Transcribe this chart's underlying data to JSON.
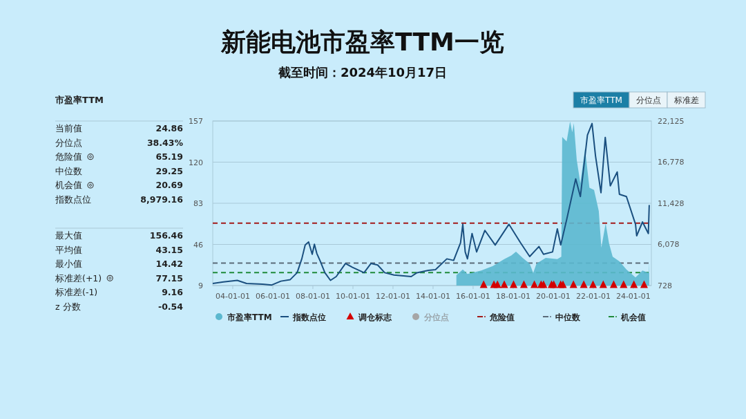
{
  "chart_data": [
    {
      "type": "other",
      "title": "市盈率TTM",
      "categories": [
        "当前值",
        "分位点",
        "危险值",
        "中位数",
        "机会值",
        "指数点位",
        "最大值",
        "平均值",
        "最小值",
        "标准差(+1)",
        "标准差(-1)",
        "z 分数"
      ],
      "value_labels": [
        "24.86",
        "38.43%",
        "65.19",
        "29.25",
        "20.69",
        "8,979.16",
        "156.46",
        "43.15",
        "14.42",
        "77.15",
        "9.16",
        "-0.54"
      ]
    },
    {
      "type": "area",
      "title": "新能电池市盈率TTM一览",
      "subtitle": "截至时间：2024年10月17日",
      "series": [
        {
          "name": "市盈率TTM",
          "type": "area",
          "color": "#5bb8cf",
          "x": [
            "2015-03-02",
            "2015-06-27",
            "2015-09-20",
            "2016-05-28",
            "2016-12-27",
            "2017-07-22",
            "2017-11-28",
            "2018-02-21",
            "2018-06-23",
            "2018-10-29",
            "2019-01-01",
            "2019-03-02",
            "2019-08-17",
            "2020-03-16",
            "2020-05-28",
            "2020-06-13",
            "2020-09-02",
            "2020-11-03",
            "2020-12-13",
            "2021-01-11",
            "2021-03-05",
            "2021-05-10",
            "2021-08-03",
            "2021-10-22",
            "2022-01-15",
            "2022-04-11",
            "2022-05-28",
            "2022-08-14",
            "2022-10-15",
            "2022-12-20",
            "2023-04-22",
            "2023-08-28",
            "2024-02-10",
            "2024-06-16",
            "2024-10-10",
            "2024-10-17"
          ],
          "values": [
            18.3,
            23.5,
            19.4,
            22.5,
            26.6,
            32.8,
            36,
            39.5,
            33.9,
            28.7,
            20.4,
            28.7,
            33.9,
            32.8,
            35,
            142.7,
            138.6,
            156.5,
            146.9,
            155,
            122,
            101,
            132,
            97,
            95,
            76,
            43,
            65,
            47,
            35,
            30.8,
            23.5,
            16.3,
            22.5,
            20.4,
            30.8
          ]
        },
        {
          "name": "指数点位",
          "type": "line",
          "axis": "y2",
          "color": "#1a4f7f",
          "x": [
            "2003-01-01",
            "2003-07-15",
            "2004-03-23",
            "2004-09-09",
            "2005-06-27",
            "2005-12-13",
            "2006-05-28",
            "2006-11-14",
            "2007-03-20",
            "2007-06-13",
            "2007-08-14",
            "2007-10-15",
            "2007-12-20",
            "2008-01-29",
            "2008-03-13",
            "2008-05-14",
            "2008-08-07",
            "2008-11-17",
            "2009-03-02",
            "2009-08-17",
            "2009-12-23",
            "2010-07-22",
            "2010-11-25",
            "2011-03-27",
            "2011-08-03",
            "2012-01-19",
            "2012-11-28",
            "2013-03-13",
            "2013-10-08",
            "2014-02-14",
            "2014-09-09",
            "2015-01-11",
            "2015-05-17",
            "2015-06-27",
            "2015-08-10",
            "2015-09-20",
            "2015-12-13",
            "2016-03-05",
            "2016-08-03",
            "2017-02-07",
            "2017-10-15",
            "2018-05-14",
            "2018-10-29",
            "2019-04-15",
            "2019-07-08",
            "2019-12-20",
            "2020-03-16",
            "2020-05-17",
            "2020-09-02",
            "2021-02-14",
            "2021-05-10",
            "2021-09-16",
            "2021-12-09",
            "2022-02-10",
            "2022-05-21",
            "2022-08-07",
            "2022-11-07",
            "2023-03-13",
            "2023-04-22",
            "2023-08-28",
            "2024-02-10",
            "2024-03-02",
            "2024-06-16",
            "2024-10-01",
            "2024-10-17"
          ],
          "values": [
            1000,
            1200,
            1400,
            1000,
            900,
            800,
            1300,
            1500,
            2400,
            4200,
            6000,
            6400,
            4800,
            6100,
            4900,
            3900,
            2400,
            1400,
            1900,
            3600,
            3100,
            2400,
            3600,
            3400,
            2400,
            2100,
            1900,
            2400,
            2700,
            2800,
            4200,
            4000,
            6300,
            8700,
            5100,
            4200,
            7500,
            5100,
            7900,
            6000,
            8700,
            6300,
            4500,
            5800,
            4800,
            5100,
            8100,
            6000,
            9300,
            14600,
            12300,
            20300,
            21800,
            17600,
            12800,
            20000,
            13700,
            15500,
            12600,
            12300,
            8700,
            7200,
            9000,
            7500,
            11200
          ]
        },
        {
          "name": "调仓标志",
          "type": "scatter",
          "marker": "triangle",
          "color": "#d40000",
          "x": [
            "2016-07-11",
            "2017-01-15",
            "2017-03-20",
            "2017-07-22",
            "2018-01-08",
            "2018-07-15",
            "2019-01-22",
            "2019-05-25",
            "2019-07-08",
            "2019-12-02",
            "2020-01-11",
            "2020-05-17",
            "2020-06-27",
            "2021-01-04",
            "2021-07-11",
            "2021-12-27",
            "2022-07-01",
            "2023-01-08",
            "2023-07-08",
            "2024-01-11",
            "2024-07-15"
          ],
          "values": [
            10,
            10,
            10,
            10,
            10,
            10,
            10,
            10,
            10,
            10,
            10,
            10,
            10,
            10,
            10,
            10,
            10,
            10,
            10,
            10,
            10
          ]
        },
        {
          "name": "分位点",
          "type": "scatter",
          "marker": "circle",
          "color": "#a6a6a6"
        }
      ],
      "xlim": [
        "2003-01-01",
        "2024-11-25"
      ],
      "xticks": [
        {
          "value": "2004-01-01",
          "label": "04-01-01"
        },
        {
          "value": "2006-01-01",
          "label": "06-01-01"
        },
        {
          "value": "2008-01-01",
          "label": "08-01-01"
        },
        {
          "value": "2010-01-01",
          "label": "10-01-01"
        },
        {
          "value": "2012-01-01",
          "label": "12-01-01"
        },
        {
          "value": "2014-01-01",
          "label": "14-01-01"
        },
        {
          "value": "2016-01-01",
          "label": "16-01-01"
        },
        {
          "value": "2018-01-01",
          "label": "18-01-01"
        },
        {
          "value": "2020-01-01",
          "label": "20-01-01"
        },
        {
          "value": "2022-01-01",
          "label": "22-01-01"
        },
        {
          "value": "2024-01-01",
          "label": "24-01-01"
        }
      ],
      "ylim": [
        9,
        157
      ],
      "yticks": [
        9,
        46,
        83,
        120,
        157
      ],
      "y2lim": [
        728,
        22125
      ],
      "y2ticks": [
        728,
        {
          "value": 6078,
          "label": "6,078"
        },
        {
          "value": 11428,
          "label": "11,428"
        },
        {
          "value": 16778,
          "label": "16,778"
        },
        {
          "value": 22125,
          "label": "22,125"
        }
      ],
      "ref_lines": [
        {
          "axis": "y",
          "value": 65.19,
          "label": "危险值",
          "color": "#a31a1a",
          "line_style": "dashed"
        },
        {
          "axis": "y",
          "value": 29.25,
          "label": "中位数",
          "color": "#5a6a78",
          "line_style": "dashed"
        },
        {
          "axis": "y",
          "value": 20.69,
          "label": "机会值",
          "color": "#1f8a3a",
          "line_style": "dashed"
        }
      ],
      "annotations": [
        "市盈率TTM",
        "分位点",
        "标准差"
      ],
      "grid": "y",
      "legend": "bottom"
    }
  ]
}
